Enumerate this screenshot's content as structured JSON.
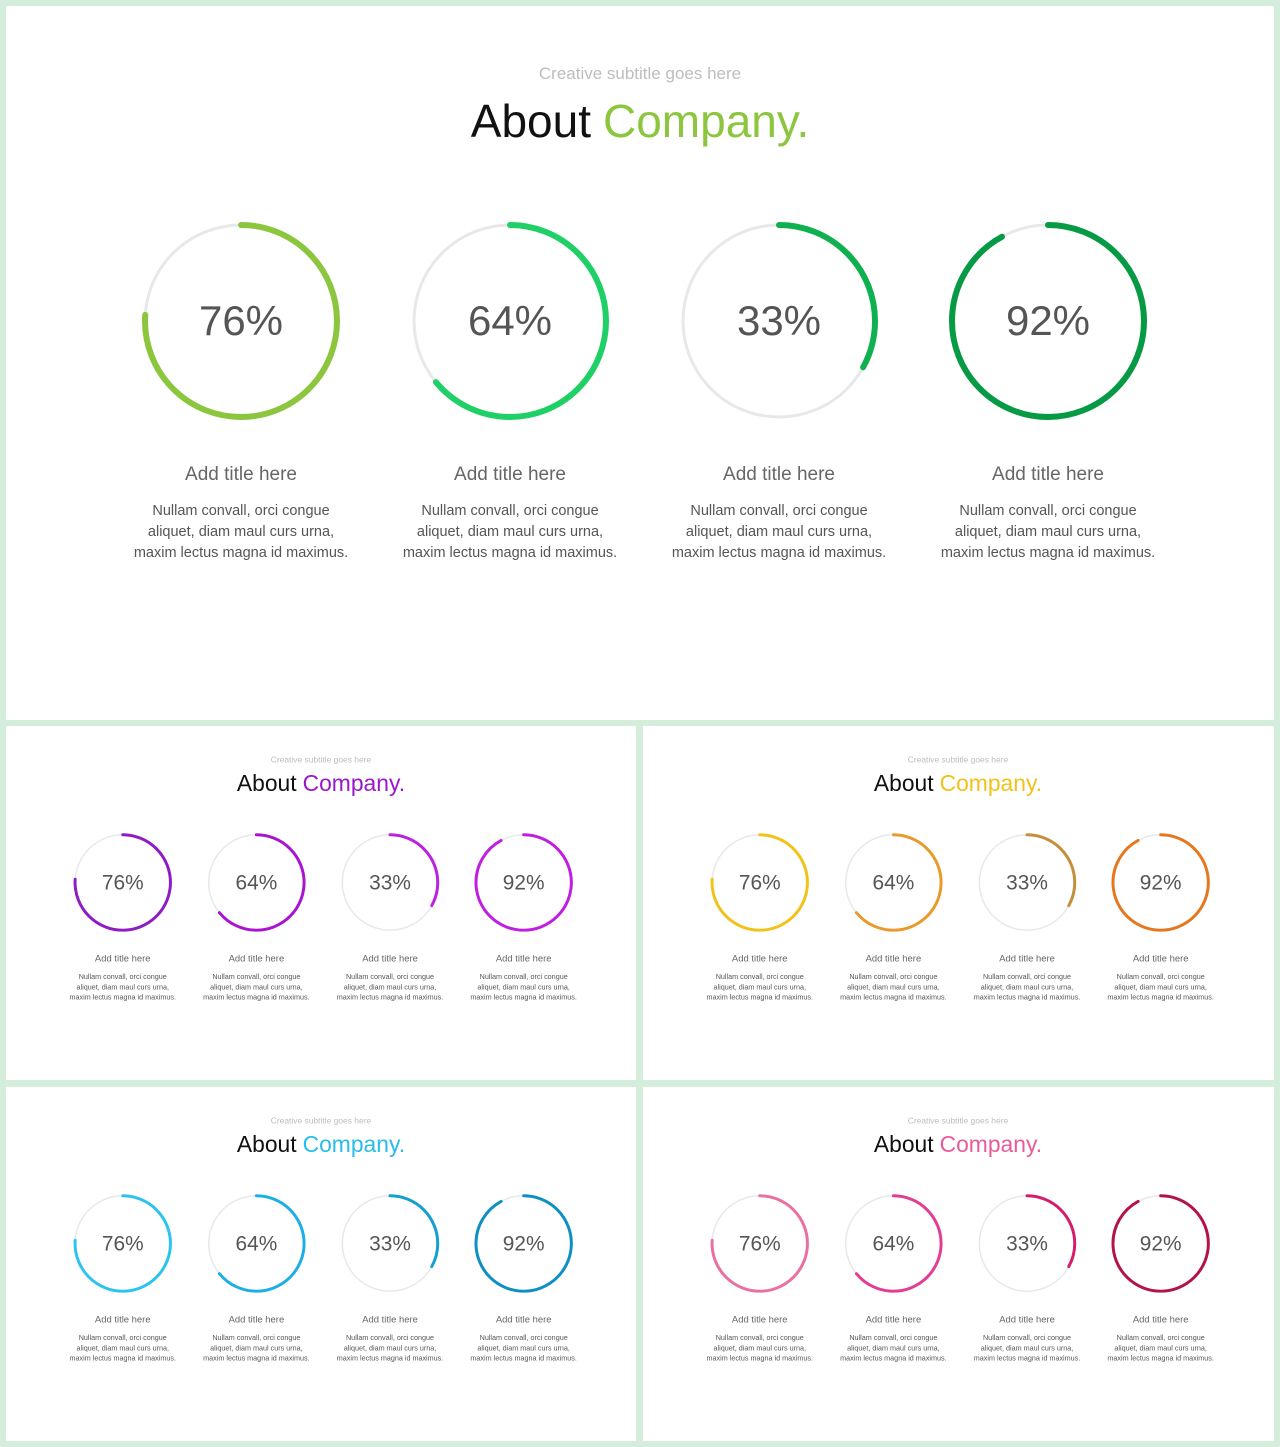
{
  "slides": [
    {
      "subtitle": "Creative subtitle goes here",
      "title_main": "About",
      "title_accent": "Company.",
      "accent_color": "#8cc63f",
      "items": [
        {
          "percent": "76%",
          "value": 0.76,
          "color": "#8cc63f",
          "title": "Add title here",
          "desc": "Nullam convall, orci congue aliquet, diam maul curs urna, maxim lectus magna id maximus."
        },
        {
          "percent": "64%",
          "value": 0.64,
          "color": "#1fd067",
          "title": "Add title here",
          "desc": "Nullam convall, orci congue aliquet, diam maul curs urna, maxim lectus magna id maximus."
        },
        {
          "percent": "33%",
          "value": 0.33,
          "color": "#0fb04f",
          "title": "Add title here",
          "desc": "Nullam convall, orci congue aliquet, diam maul curs urna, maxim lectus magna id maximus."
        },
        {
          "percent": "92%",
          "value": 0.92,
          "color": "#079a44",
          "title": "Add title here",
          "desc": "Nullam convall, orci congue aliquet, diam maul curs urna, maxim lectus magna id maximus."
        }
      ]
    },
    {
      "subtitle": "Creative subtitle goes here",
      "title_main": "About",
      "title_accent": "Company.",
      "accent_color": "#9b17c8",
      "items": [
        {
          "percent": "76%",
          "value": 0.76,
          "color": "#8f1bc4",
          "title": "Add title here",
          "desc": "Nullam convall, orci congue aliquet, diam maul curs urna, maxim lectus magna id maximus."
        },
        {
          "percent": "64%",
          "value": 0.64,
          "color": "#a914d0",
          "title": "Add title here",
          "desc": "Nullam convall, orci congue aliquet, diam maul curs urna, maxim lectus magna id maximus."
        },
        {
          "percent": "33%",
          "value": 0.33,
          "color": "#bb22dd",
          "title": "Add title here",
          "desc": "Nullam convall, orci congue aliquet, diam maul curs urna, maxim lectus magna id maximus."
        },
        {
          "percent": "92%",
          "value": 0.92,
          "color": "#c01ee0",
          "title": "Add title here",
          "desc": "Nullam convall, orci congue aliquet, diam maul curs urna, maxim lectus magna id maximus."
        }
      ]
    },
    {
      "subtitle": "Creative subtitle goes here",
      "title_main": "About",
      "title_accent": "Company.",
      "accent_color": "#f2c21a",
      "items": [
        {
          "percent": "76%",
          "value": 0.76,
          "color": "#f2c21a",
          "title": "Add title here",
          "desc": "Nullam convall, orci congue aliquet, diam maul curs urna, maxim lectus magna id maximus."
        },
        {
          "percent": "64%",
          "value": 0.64,
          "color": "#ea9a2c",
          "title": "Add title here",
          "desc": "Nullam convall, orci congue aliquet, diam maul curs urna, maxim lectus magna id maximus."
        },
        {
          "percent": "33%",
          "value": 0.33,
          "color": "#c68e3c",
          "title": "Add title here",
          "desc": "Nullam convall, orci congue aliquet, diam maul curs urna, maxim lectus magna id maximus."
        },
        {
          "percent": "92%",
          "value": 0.92,
          "color": "#e5781f",
          "title": "Add title here",
          "desc": "Nullam convall, orci congue aliquet, diam maul curs urna, maxim lectus magna id maximus."
        }
      ]
    },
    {
      "subtitle": "Creative subtitle goes here",
      "title_main": "About",
      "title_accent": "Company.",
      "accent_color": "#28bce8",
      "items": [
        {
          "percent": "76%",
          "value": 0.76,
          "color": "#2cc3ee",
          "title": "Add title here",
          "desc": "Nullam convall, orci congue aliquet, diam maul curs urna, maxim lectus magna id maximus."
        },
        {
          "percent": "64%",
          "value": 0.64,
          "color": "#1eaee6",
          "title": "Add title here",
          "desc": "Nullam convall, orci congue aliquet, diam maul curs urna, maxim lectus magna id maximus."
        },
        {
          "percent": "33%",
          "value": 0.33,
          "color": "#149fd0",
          "title": "Add title here",
          "desc": "Nullam convall, orci congue aliquet, diam maul curs urna, maxim lectus magna id maximus."
        },
        {
          "percent": "92%",
          "value": 0.92,
          "color": "#0e8fc4",
          "title": "Add title here",
          "desc": "Nullam convall, orci congue aliquet, diam maul curs urna, maxim lectus magna id maximus."
        }
      ]
    },
    {
      "subtitle": "Creative subtitle goes here",
      "title_main": "About",
      "title_accent": "Company.",
      "accent_color": "#ea5a9a",
      "items": [
        {
          "percent": "76%",
          "value": 0.76,
          "color": "#ea70a3",
          "title": "Add title here",
          "desc": "Nullam convall, orci congue aliquet, diam maul curs urna, maxim lectus magna id maximus."
        },
        {
          "percent": "64%",
          "value": 0.64,
          "color": "#e23c94",
          "title": "Add title here",
          "desc": "Nullam convall, orci congue aliquet, diam maul curs urna, maxim lectus magna id maximus."
        },
        {
          "percent": "33%",
          "value": 0.33,
          "color": "#d41e6c",
          "title": "Add title here",
          "desc": "Nullam convall, orci congue aliquet, diam maul curs urna, maxim lectus magna id maximus."
        },
        {
          "percent": "92%",
          "value": 0.92,
          "color": "#b31447",
          "title": "Add title here",
          "desc": "Nullam convall, orci congue aliquet, diam maul curs urna, maxim lectus magna id maximus."
        }
      ]
    }
  ]
}
